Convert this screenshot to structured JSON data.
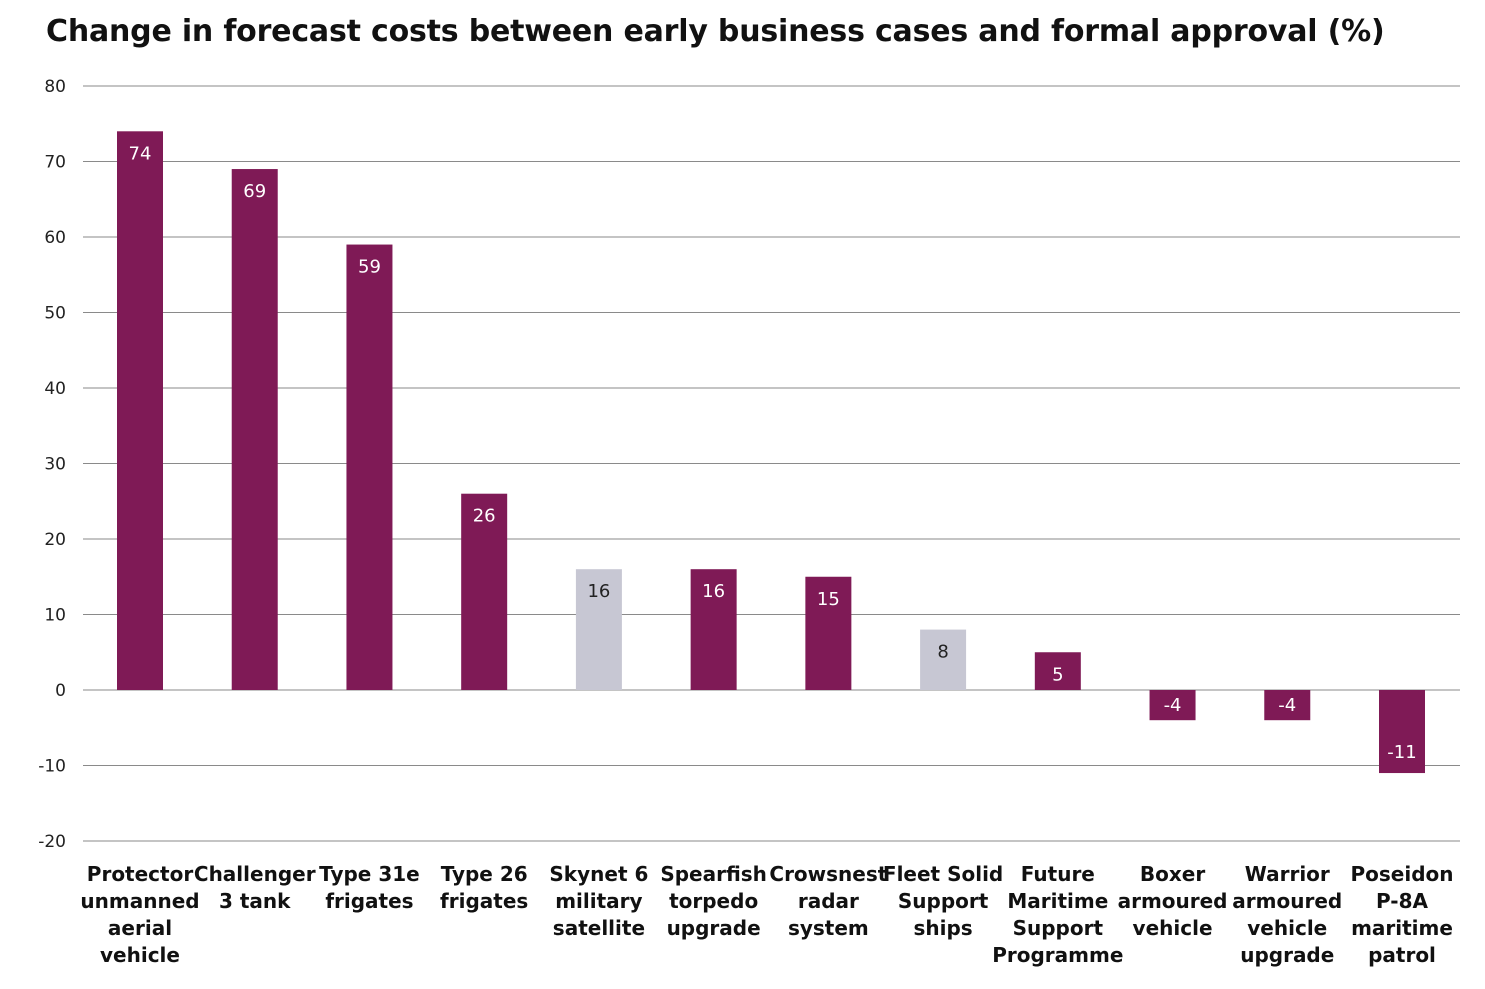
{
  "chart_data": {
    "type": "bar",
    "title": "Change in forecast costs between early business cases and formal approval (%)",
    "xlabel": "",
    "ylabel": "",
    "ylim": [
      -20,
      80
    ],
    "yticks": [
      80,
      70,
      60,
      50,
      40,
      30,
      20,
      10,
      0,
      -10,
      -20
    ],
    "grid": true,
    "categories": [
      [
        "Protector",
        "unmanned",
        "aerial",
        "vehicle"
      ],
      [
        "Challenger",
        "3 tank"
      ],
      [
        "Type 31e",
        "frigates"
      ],
      [
        "Type 26",
        "frigates"
      ],
      [
        "Skynet 6",
        "military",
        "satellite"
      ],
      [
        "Spearfish",
        "torpedo",
        "upgrade"
      ],
      [
        "Crowsnest",
        "radar",
        "system"
      ],
      [
        "Fleet Solid",
        "Support",
        "ships"
      ],
      [
        "Future",
        "Maritime",
        "Support",
        "Programme"
      ],
      [
        "Boxer",
        "armoured",
        "vehicle"
      ],
      [
        "Warrior",
        "armoured",
        "vehicle",
        "upgrade"
      ],
      [
        "Poseidon",
        "P-8A",
        "maritime",
        "patrol"
      ]
    ],
    "values": [
      74,
      69,
      59,
      26,
      16,
      16,
      15,
      8,
      5,
      -4,
      -4,
      -11
    ],
    "data_labels": [
      "74",
      "69",
      "59",
      "26",
      "16",
      "16",
      "15",
      "8",
      "5",
      "-4",
      "-4",
      "-11"
    ],
    "highlighted": [
      false,
      false,
      false,
      false,
      true,
      false,
      false,
      true,
      false,
      false,
      false,
      false
    ],
    "colors": {
      "primary": "#7f1a56",
      "highlight": "#c7c7d3",
      "label_on_primary": "#ffffff",
      "label_on_highlight": "#222222"
    }
  }
}
